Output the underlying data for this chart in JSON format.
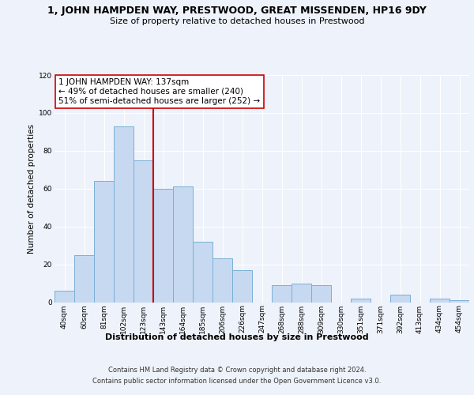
{
  "title": "1, JOHN HAMPDEN WAY, PRESTWOOD, GREAT MISSENDEN, HP16 9DY",
  "subtitle": "Size of property relative to detached houses in Prestwood",
  "xlabel": "Distribution of detached houses by size in Prestwood",
  "ylabel": "Number of detached properties",
  "bar_labels": [
    "40sqm",
    "60sqm",
    "81sqm",
    "102sqm",
    "123sqm",
    "143sqm",
    "164sqm",
    "185sqm",
    "206sqm",
    "226sqm",
    "247sqm",
    "268sqm",
    "288sqm",
    "309sqm",
    "330sqm",
    "351sqm",
    "371sqm",
    "392sqm",
    "413sqm",
    "434sqm",
    "454sqm"
  ],
  "bar_values": [
    6,
    25,
    64,
    93,
    75,
    60,
    61,
    32,
    23,
    17,
    0,
    9,
    10,
    9,
    0,
    2,
    0,
    4,
    0,
    2,
    1
  ],
  "bar_color": "#c6d9f1",
  "bar_edge_color": "#7bafd4",
  "reference_line_color": "#cc0000",
  "reference_line_x": 4.5,
  "annotation_text": "1 JOHN HAMPDEN WAY: 137sqm\n← 49% of detached houses are smaller (240)\n51% of semi-detached houses are larger (252) →",
  "annotation_box_color": "#ffffff",
  "annotation_box_edge": "#cc0000",
  "ylim": [
    0,
    120
  ],
  "yticks": [
    0,
    20,
    40,
    60,
    80,
    100,
    120
  ],
  "footer_line1": "Contains HM Land Registry data © Crown copyright and database right 2024.",
  "footer_line2": "Contains public sector information licensed under the Open Government Licence v3.0.",
  "background_color": "#eef2fa",
  "plot_bg_color": "#eef2fa",
  "grid_color": "#ffffff",
  "title_fontsize": 9,
  "subtitle_fontsize": 8,
  "ylabel_fontsize": 7.5,
  "xlabel_fontsize": 8,
  "tick_fontsize": 6.5,
  "footer_fontsize": 6,
  "annotation_fontsize": 7.5
}
